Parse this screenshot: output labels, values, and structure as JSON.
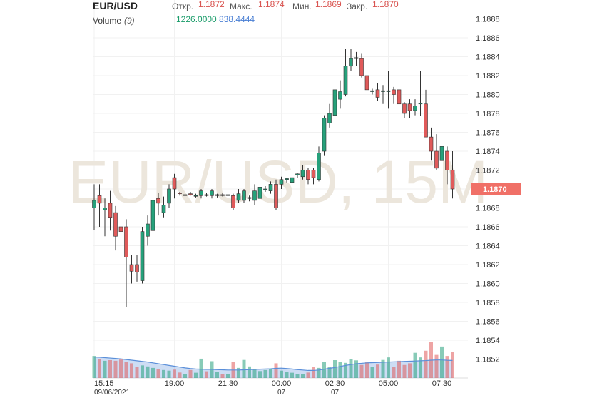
{
  "chart_data": {
    "type": "candlestick",
    "header": {
      "symbol": "EUR/USD",
      "open_label": "Откр.",
      "open": "1.1872",
      "high_label": "Макс.",
      "high": "1.1874",
      "low_label": "Мин.",
      "low": "1.1869",
      "close_label": "Закр.",
      "close": "1.1870",
      "volume_label": "Volume",
      "volume_period": "(9)",
      "volume_value": "1226.0000",
      "volume_ma_value": "838.4444"
    },
    "watermark": "EUR/USD, 15M",
    "up_color": "#26a17b",
    "down_color": "#e05a5a",
    "ma_color": "#5b8fd9",
    "grid": true,
    "ylim": [
      1.185,
      1.189
    ],
    "yticks": [
      1.1852,
      1.1854,
      1.1856,
      1.1858,
      {
        "value": 1.186,
        "label": "1.1860"
      },
      1.1862,
      1.1864,
      1.1866,
      1.1868,
      {
        "value": 1.187,
        "label": "1.1870"
      },
      1.1872,
      1.1874,
      1.1876,
      1.1878,
      {
        "value": 1.188,
        "label": "1.1880"
      },
      1.1882,
      1.1884,
      1.1886,
      1.1888
    ],
    "categories": [
      "15:15",
      null,
      null,
      null,
      null,
      null,
      null,
      null,
      null,
      null,
      null,
      null,
      null,
      null,
      null,
      "19:00",
      null,
      null,
      null,
      null,
      null,
      null,
      null,
      null,
      null,
      "21:30",
      null,
      null,
      null,
      null,
      null,
      null,
      null,
      null,
      null,
      "00:00",
      null,
      null,
      null,
      null,
      null,
      null,
      null,
      null,
      null,
      "02:30",
      null,
      null,
      null,
      null,
      null,
      null,
      null,
      null,
      null,
      "05:00",
      null,
      null,
      null,
      null,
      null,
      null,
      null,
      null,
      null,
      "07:30",
      null,
      null
    ],
    "category_dates": [
      "09/06/2021",
      null,
      null,
      null,
      null,
      null,
      null,
      null,
      null,
      null,
      null,
      null,
      null,
      null,
      null,
      null,
      null,
      null,
      null,
      null,
      null,
      null,
      null,
      null,
      null,
      null,
      null,
      null,
      null,
      null,
      null,
      null,
      null,
      null,
      null,
      "07",
      null,
      null,
      null,
      null,
      null,
      null,
      null,
      null,
      null,
      "07",
      null,
      null,
      null,
      null,
      null,
      null,
      null,
      null,
      null,
      null,
      null,
      null,
      null,
      null,
      null,
      null,
      null,
      null,
      null,
      null,
      null,
      null
    ],
    "open": [
      1.1868,
      1.18693,
      1.18678,
      1.18685,
      1.18675,
      1.1866,
      1.1866,
      1.1862,
      1.1862,
      1.18603,
      1.1865,
      1.18656,
      1.1869,
      1.18675,
      1.18685,
      1.18712,
      1.18696,
      1.18693,
      1.18695,
      1.18693,
      1.18693,
      1.18694,
      1.18693,
      1.18693,
      1.18694,
      1.18693,
      1.18693,
      1.18688,
      1.18688,
      1.1869,
      1.18688,
      1.1869,
      1.187,
      1.18698,
      1.18705,
      1.18705,
      1.1871,
      1.18707,
      1.18715,
      1.18713,
      1.1872,
      1.1872,
      1.1871,
      1.1874,
      1.1877,
      1.18778,
      1.18795,
      1.188,
      1.1883,
      1.18838,
      1.18838,
      1.1882,
      1.18803,
      1.18805,
      1.18803,
      1.18803,
      1.18805,
      1.18805,
      1.1879,
      1.1879,
      1.18783,
      1.1879,
      1.1879,
      1.18755,
      1.1874,
      1.1873,
      1.1874,
      1.1872
    ],
    "high": [
      1.18705,
      1.18705,
      1.1869,
      1.18698,
      1.18682,
      1.18665,
      1.18668,
      1.1863,
      1.1863,
      1.1866,
      1.18672,
      1.18695,
      1.18696,
      1.18692,
      1.18705,
      1.18716,
      1.18697,
      1.18695,
      1.18697,
      1.18695,
      1.187,
      1.18696,
      1.187,
      1.18695,
      1.18696,
      1.18695,
      1.18695,
      1.187,
      1.187,
      1.18693,
      1.18705,
      1.1871,
      1.18703,
      1.18708,
      1.1871,
      1.18713,
      1.18712,
      1.18718,
      1.18717,
      1.18725,
      1.18722,
      1.18722,
      1.18745,
      1.18778,
      1.1879,
      1.1881,
      1.18815,
      1.18848,
      1.18848,
      1.18845,
      1.18843,
      1.18822,
      1.18806,
      1.18812,
      1.1881,
      1.18825,
      1.18808,
      1.18805,
      1.18792,
      1.18795,
      1.18795,
      1.18825,
      1.18805,
      1.18765,
      1.18758,
      1.18748,
      1.18745,
      1.1874
    ],
    "low": [
      1.18657,
      1.1866,
      1.1865,
      1.18656,
      1.18635,
      1.1863,
      1.18575,
      1.186,
      1.18602,
      1.186,
      1.1864,
      1.18645,
      1.18672,
      1.1867,
      1.1868,
      1.1869,
      1.18693,
      1.18691,
      1.18693,
      1.18691,
      1.1869,
      1.18692,
      1.1869,
      1.18691,
      1.18692,
      1.18691,
      1.18678,
      1.18685,
      1.18685,
      1.18687,
      1.18683,
      1.18688,
      1.18697,
      1.18695,
      1.18678,
      1.187,
      1.18707,
      1.18705,
      1.18712,
      1.1871,
      1.18705,
      1.18705,
      1.18708,
      1.18735,
      1.18765,
      1.18775,
      1.18785,
      1.18798,
      1.18825,
      1.1883,
      1.18818,
      1.18795,
      1.188,
      1.18793,
      1.1879,
      1.18785,
      1.1879,
      1.18785,
      1.18775,
      1.18775,
      1.18778,
      1.18777,
      1.18755,
      1.1873,
      1.1872,
      1.18725,
      1.18705,
      1.1869
    ],
    "close": [
      1.18688,
      1.18685,
      1.1868,
      1.1867,
      1.1865,
      1.18655,
      1.18628,
      1.18613,
      1.18612,
      1.18655,
      1.18663,
      1.18688,
      1.18685,
      1.18683,
      1.187,
      1.187,
      1.18695,
      1.18694,
      1.18694,
      1.18693,
      1.18698,
      1.18693,
      1.18698,
      1.18694,
      1.18693,
      1.18694,
      1.1868,
      1.18695,
      1.18698,
      1.18691,
      1.18698,
      1.18702,
      1.187,
      1.18705,
      1.1868,
      1.1871,
      1.18711,
      1.18712,
      1.18716,
      1.1872,
      1.1871,
      1.18712,
      1.18738,
      1.18775,
      1.1878,
      1.18805,
      1.18803,
      1.1883,
      1.18838,
      1.18839,
      1.1882,
      1.18805,
      1.18804,
      1.18797,
      1.18804,
      1.18804,
      1.188,
      1.1879,
      1.1878,
      1.18783,
      1.18788,
      1.18791,
      1.18755,
      1.1874,
      1.18722,
      1.18745,
      1.1872,
      1.187
    ],
    "volume": [
      1050,
      900,
      820,
      850,
      820,
      880,
      780,
      700,
      520,
      600,
      550,
      480,
      420,
      380,
      350,
      400,
      260,
      200,
      380,
      250,
      920,
      320,
      800,
      300,
      200,
      180,
      750,
      480,
      860,
      550,
      420,
      330,
      380,
      420,
      700,
      350,
      300,
      250,
      200,
      180,
      260,
      540,
      480,
      750,
      520,
      850,
      780,
      720,
      900,
      840,
      620,
      780,
      520,
      640,
      860,
      980,
      520,
      820,
      620,
      700,
      1200,
      980,
      1300,
      1700,
      1100,
      1500,
      1050,
      1226
    ],
    "volume_ma": [
      1000,
      990,
      970,
      950,
      930,
      910,
      880,
      850,
      820,
      790,
      760,
      720,
      680,
      640,
      600,
      560,
      520,
      480,
      450,
      430,
      420,
      410,
      410,
      400,
      390,
      380,
      380,
      380,
      390,
      400,
      410,
      420,
      430,
      440,
      460,
      470,
      450,
      430,
      400,
      380,
      360,
      360,
      380,
      420,
      460,
      500,
      550,
      600,
      640,
      680,
      700,
      720,
      730,
      740,
      750,
      760,
      770,
      780,
      790,
      800,
      810,
      820,
      830,
      850,
      860,
      860,
      845,
      838.4444
    ]
  }
}
